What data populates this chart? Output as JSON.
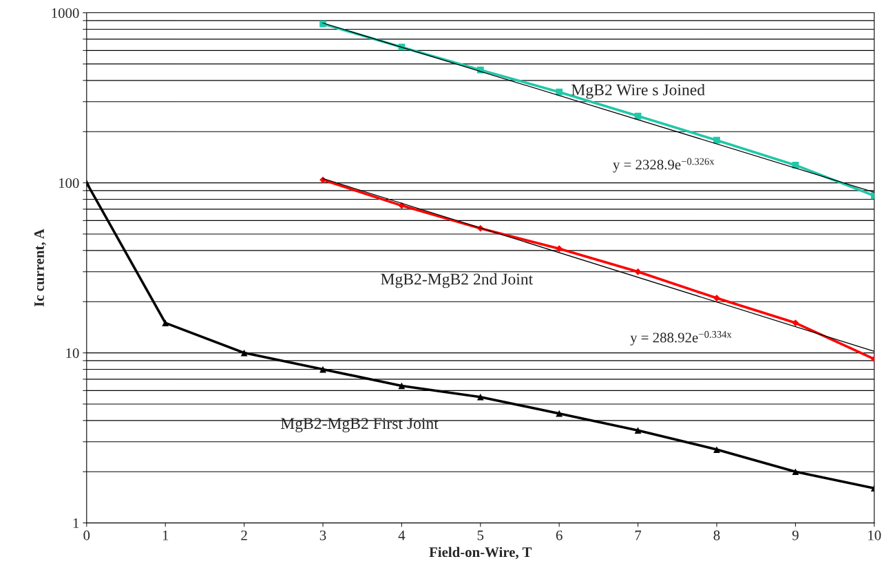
{
  "chart_data": {
    "type": "line",
    "xlabel": "Field-on-Wire, T",
    "ylabel": "Ic current, A",
    "log": "y",
    "grid": "y",
    "xlim": [
      0,
      10
    ],
    "xticks": [
      0,
      1,
      2,
      3,
      4,
      5,
      6,
      7,
      8,
      9,
      10
    ],
    "ylim": [
      1,
      1000
    ],
    "yticks": [
      1,
      {
        "value": 2,
        "label": null
      },
      {
        "value": 3,
        "label": null
      },
      {
        "value": 4,
        "label": null
      },
      {
        "value": 5,
        "label": null
      },
      {
        "value": 6,
        "label": null
      },
      {
        "value": 7,
        "label": null
      },
      {
        "value": 8,
        "label": null
      },
      {
        "value": 9,
        "label": null
      },
      10,
      {
        "value": 20,
        "label": null
      },
      {
        "value": 30,
        "label": null
      },
      {
        "value": 40,
        "label": null
      },
      {
        "value": 50,
        "label": null
      },
      {
        "value": 60,
        "label": null
      },
      {
        "value": 70,
        "label": null
      },
      {
        "value": 80,
        "label": null
      },
      {
        "value": 90,
        "label": null
      },
      100,
      {
        "value": 200,
        "label": null
      },
      {
        "value": 300,
        "label": null
      },
      {
        "value": 400,
        "label": null
      },
      {
        "value": 500,
        "label": null
      },
      {
        "value": 600,
        "label": null
      },
      {
        "value": 700,
        "label": null
      },
      {
        "value": 800,
        "label": null
      },
      {
        "value": 900,
        "label": null
      },
      1000
    ],
    "series": [
      {
        "name": "MgB2 Wire s Joined",
        "color": "#20c8a8",
        "marker": "square",
        "x": [
          3,
          4,
          5,
          6,
          7,
          8,
          9,
          10
        ],
        "values": [
          861,
          628,
          461,
          342,
          247,
          178,
          127,
          84
        ]
      },
      {
        "color": "#000000",
        "marker": "none",
        "x": [
          3,
          10
        ],
        "values": [
          870,
          88
        ]
      },
      {
        "name": "MgB2-MgB2 2nd Joint",
        "color": "#ff0000",
        "marker": "diamond",
        "x": [
          3,
          4,
          5,
          6,
          7,
          8,
          9,
          10
        ],
        "values": [
          104,
          73.5,
          54,
          41,
          30,
          21,
          15,
          9.2
        ]
      },
      {
        "color": "#000000",
        "marker": "none",
        "x": [
          3,
          10
        ],
        "values": [
          106,
          10.2
        ]
      },
      {
        "name": "MgB2-MgB2 First Joint",
        "color": "#000000",
        "marker": "triangle",
        "x": [
          0,
          1,
          2,
          3,
          4,
          5,
          6,
          7,
          8,
          9,
          10
        ],
        "values": [
          100,
          15,
          10,
          8,
          6.4,
          5.5,
          4.4,
          3.5,
          2.7,
          2,
          1.6
        ]
      }
    ],
    "annotations": [
      "y = 2328.9e$^{−0.326x}$",
      "y = 288.92e$^{−0.334x}$"
    ]
  }
}
